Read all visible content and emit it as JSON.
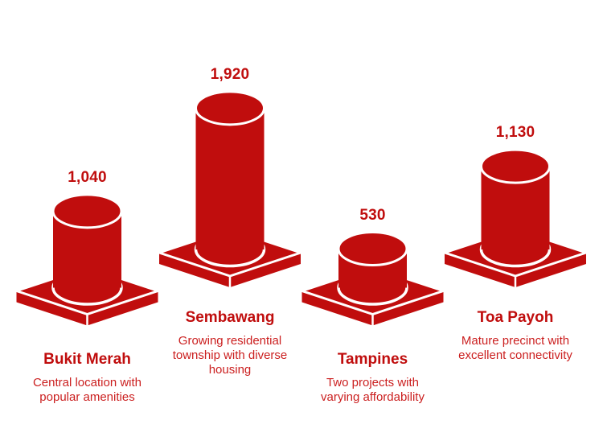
{
  "colors": {
    "primary": "#C00D0D",
    "name_text": "#C00D0D",
    "value_text": "#C00D0D",
    "description_text": "#CB1F1F",
    "outline": "#FFFFFF",
    "background": "#FFFFFF"
  },
  "chart_data": {
    "type": "bar",
    "variant": "isometric-cylinder-pictogram",
    "title": "",
    "xlabel": "",
    "ylabel": "",
    "grid": false,
    "legend": "none",
    "categories": [
      "Bukit Merah",
      "Sembawang",
      "Tampines",
      "Toa Payoh"
    ],
    "values": [
      1040,
      1920,
      530,
      1130
    ],
    "value_labels": [
      "1,040",
      "1,920",
      "530",
      "1,130"
    ],
    "annotations": [
      "Central location with popular amenities",
      "Growing residential township with diverse housing",
      "Two projects with varying affordability",
      "Mature precinct with excellent connectivity"
    ]
  },
  "locations": [
    {
      "name": "Bukit Merah",
      "value": 1040,
      "value_label": "1,040",
      "description": "Central location with\npopular amenities"
    },
    {
      "name": "Sembawang",
      "value": 1920,
      "value_label": "1,920",
      "description": "Growing residential\ntownship with diverse\nhousing"
    },
    {
      "name": "Tampines",
      "value": 530,
      "value_label": "530",
      "description": "Two projects with\nvarying affordability"
    },
    {
      "name": "Toa Payoh",
      "value": 1130,
      "value_label": "1,130",
      "description": "Mature precinct with\nexcellent connectivity"
    }
  ]
}
